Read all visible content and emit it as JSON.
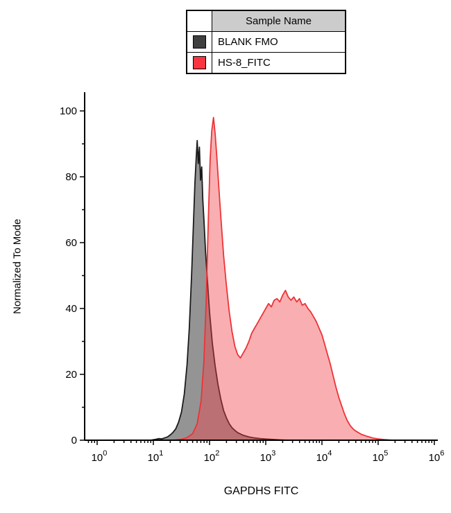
{
  "legend": {
    "header": "Sample Name",
    "entries": [
      {
        "label": "BLANK FMO",
        "swatch_color": "#3f3f3f",
        "swatch_border": "#000000"
      },
      {
        "label": "HS-8_FITC",
        "swatch_color": "#fb353f",
        "swatch_border": "#000000"
      }
    ]
  },
  "chart_data": {
    "type": "area",
    "subtype": "flow-cytometry-histogram-overlay",
    "title": "",
    "xlabel": "GAPDHS FITC",
    "ylabel": "Normalized To Mode",
    "x_scale": "log10",
    "xlim_log10": [
      -0.22,
      6.05
    ],
    "ylim": [
      0,
      105
    ],
    "grid": false,
    "legend_position": "top-center",
    "x_ticks_exponents": [
      0,
      1,
      2,
      3,
      4,
      5,
      6
    ],
    "y_ticks": [
      0,
      20,
      40,
      60,
      80,
      100
    ],
    "series": [
      {
        "name": "BLANK FMO",
        "stroke": "#1a1a1a",
        "fill": "rgba(70,70,70,0.58)",
        "peak": {
          "x": 60,
          "y": 91
        },
        "points_log10x_y": [
          [
            0.95,
            0
          ],
          [
            1.05,
            0.3
          ],
          [
            1.1,
            0.5
          ],
          [
            1.15,
            0.4
          ],
          [
            1.2,
            0.7
          ],
          [
            1.25,
            1
          ],
          [
            1.3,
            1.6
          ],
          [
            1.35,
            2.4
          ],
          [
            1.4,
            3.5
          ],
          [
            1.45,
            5.5
          ],
          [
            1.5,
            8.5
          ],
          [
            1.55,
            14
          ],
          [
            1.6,
            23
          ],
          [
            1.64,
            34
          ],
          [
            1.68,
            50
          ],
          [
            1.71,
            64
          ],
          [
            1.74,
            78
          ],
          [
            1.76,
            85
          ],
          [
            1.78,
            91
          ],
          [
            1.8,
            84
          ],
          [
            1.82,
            89
          ],
          [
            1.84,
            79
          ],
          [
            1.86,
            83
          ],
          [
            1.88,
            73
          ],
          [
            1.9,
            67
          ],
          [
            1.93,
            57
          ],
          [
            1.96,
            49
          ],
          [
            2.0,
            39
          ],
          [
            2.05,
            29.5
          ],
          [
            2.1,
            22.5
          ],
          [
            2.15,
            17
          ],
          [
            2.2,
            12.5
          ],
          [
            2.25,
            9
          ],
          [
            2.3,
            6.8
          ],
          [
            2.35,
            5
          ],
          [
            2.4,
            3.8
          ],
          [
            2.45,
            3
          ],
          [
            2.5,
            2.3
          ],
          [
            2.6,
            1.5
          ],
          [
            2.7,
            1
          ],
          [
            2.8,
            0.7
          ],
          [
            2.9,
            0.5
          ],
          [
            3.0,
            0.35
          ],
          [
            3.1,
            0.25
          ],
          [
            3.25,
            0.1
          ],
          [
            3.4,
            0
          ]
        ]
      },
      {
        "name": "HS-8_FITC",
        "stroke": "#ed3237",
        "fill": "rgba(240,65,70,0.42)",
        "peaks": [
          {
            "x": 115,
            "y": 98
          },
          {
            "x": 2200,
            "y": 45
          }
        ],
        "points_log10x_y": [
          [
            1.35,
            0
          ],
          [
            1.5,
            0.3
          ],
          [
            1.6,
            0.8
          ],
          [
            1.7,
            2
          ],
          [
            1.78,
            5
          ],
          [
            1.85,
            12
          ],
          [
            1.9,
            24
          ],
          [
            1.94,
            42
          ],
          [
            1.98,
            68
          ],
          [
            2.01,
            85
          ],
          [
            2.04,
            94
          ],
          [
            2.07,
            98
          ],
          [
            2.1,
            93
          ],
          [
            2.13,
            86
          ],
          [
            2.16,
            78
          ],
          [
            2.2,
            68
          ],
          [
            2.25,
            56
          ],
          [
            2.3,
            47
          ],
          [
            2.35,
            39
          ],
          [
            2.4,
            33
          ],
          [
            2.45,
            28.5
          ],
          [
            2.5,
            26
          ],
          [
            2.55,
            25
          ],
          [
            2.6,
            26.5
          ],
          [
            2.65,
            28
          ],
          [
            2.7,
            30
          ],
          [
            2.75,
            32.5
          ],
          [
            2.8,
            34
          ],
          [
            2.85,
            35.5
          ],
          [
            2.9,
            37
          ],
          [
            2.95,
            38.5
          ],
          [
            3.0,
            40
          ],
          [
            3.05,
            41.5
          ],
          [
            3.1,
            40.5
          ],
          [
            3.15,
            42.5
          ],
          [
            3.2,
            43
          ],
          [
            3.25,
            42
          ],
          [
            3.3,
            44
          ],
          [
            3.35,
            45.5
          ],
          [
            3.4,
            43.5
          ],
          [
            3.45,
            42.5
          ],
          [
            3.5,
            43.5
          ],
          [
            3.55,
            42
          ],
          [
            3.6,
            43
          ],
          [
            3.65,
            41
          ],
          [
            3.7,
            41.5
          ],
          [
            3.75,
            40
          ],
          [
            3.8,
            39
          ],
          [
            3.85,
            37.5
          ],
          [
            3.9,
            36
          ],
          [
            3.95,
            34
          ],
          [
            4.0,
            32
          ],
          [
            4.05,
            29
          ],
          [
            4.1,
            26
          ],
          [
            4.15,
            23
          ],
          [
            4.2,
            19.5
          ],
          [
            4.25,
            16
          ],
          [
            4.3,
            13
          ],
          [
            4.35,
            10.5
          ],
          [
            4.4,
            8
          ],
          [
            4.45,
            6
          ],
          [
            4.5,
            4.5
          ],
          [
            4.55,
            3.5
          ],
          [
            4.6,
            2.8
          ],
          [
            4.7,
            1.8
          ],
          [
            4.8,
            1.2
          ],
          [
            4.9,
            0.7
          ],
          [
            5.0,
            0.4
          ],
          [
            5.1,
            0.2
          ],
          [
            5.25,
            0
          ]
        ]
      }
    ]
  }
}
